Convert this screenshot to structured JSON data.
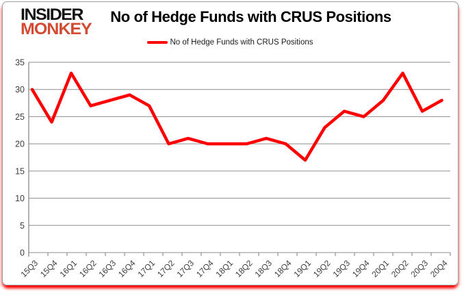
{
  "logo": {
    "line1": "INSIDER",
    "line2": "MONKEY"
  },
  "header": {
    "title": "No of Hedge Funds with CRUS Positions"
  },
  "legend": {
    "label": "No of Hedge Funds with CRUS Positions"
  },
  "colors": {
    "line": "#ff0000",
    "grid": "#8e8e8e",
    "axis": "#7f7f7f",
    "axis_text": "#3d3d3d",
    "logo_accent": "#d24b32",
    "frame_glow": "#ff0000"
  },
  "chart_data": {
    "type": "line",
    "title": "No of Hedge Funds with CRUS Positions",
    "categories": [
      "15Q3",
      "15Q4",
      "16Q1",
      "16Q2",
      "16Q3",
      "16Q4",
      "17Q1",
      "17Q2",
      "17Q3",
      "17Q4",
      "18Q1",
      "18Q2",
      "18Q3",
      "18Q4",
      "19Q1",
      "19Q2",
      "19Q3",
      "19Q4",
      "20Q1",
      "20Q2",
      "20Q3",
      "20Q4"
    ],
    "series": [
      {
        "name": "No of Hedge Funds with CRUS Positions",
        "color": "#ff0000",
        "values": [
          30,
          24,
          33,
          27,
          28,
          29,
          27,
          20,
          21,
          20,
          20,
          20,
          21,
          20,
          17,
          23,
          26,
          25,
          28,
          33,
          26,
          28
        ]
      }
    ],
    "xlabel": "",
    "ylabel": "",
    "ylim": [
      0,
      35
    ],
    "yticks": [
      0,
      5,
      10,
      15,
      20,
      25,
      30,
      35
    ],
    "grid": true,
    "legend_position": "top-center"
  }
}
